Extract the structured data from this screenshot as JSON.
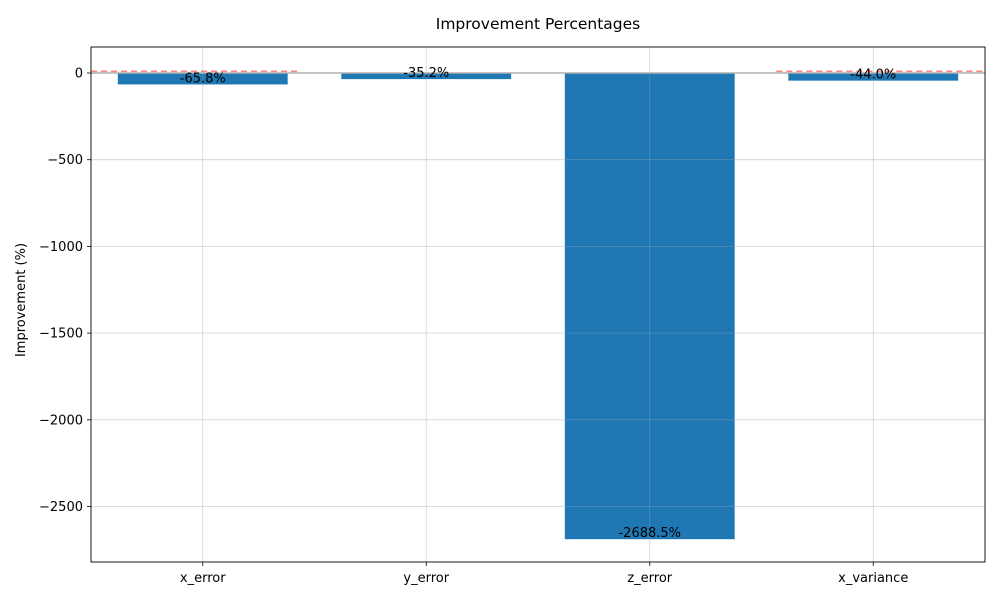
{
  "chart_data": {
    "type": "bar",
    "title": "Improvement Percentages",
    "xlabel": "",
    "ylabel": "Improvement (%)",
    "categories": [
      "x_error",
      "y_error",
      "z_error",
      "x_variance"
    ],
    "values": [
      -65.8,
      -35.2,
      -2688.5,
      -44.0
    ],
    "data_labels": [
      "-65.8%",
      "-35.2%",
      "-2688.5%",
      "-44.0%"
    ],
    "ylim": [
      -2820,
      150
    ],
    "yticks": [
      0,
      -500,
      -1000,
      -1500,
      -2000,
      -2500
    ],
    "ytick_labels": [
      "0",
      "−500",
      "−1000",
      "−1500",
      "−2000",
      "−2500"
    ],
    "grid": true,
    "bar_color": "#1f77b4",
    "zero_line_color": "#b0b0b0",
    "reference_line": {
      "value": 10,
      "style": "dashed",
      "color": "#ff6b6b",
      "segments": [
        [
          "x_error"
        ],
        [
          "x_variance"
        ]
      ]
    }
  }
}
